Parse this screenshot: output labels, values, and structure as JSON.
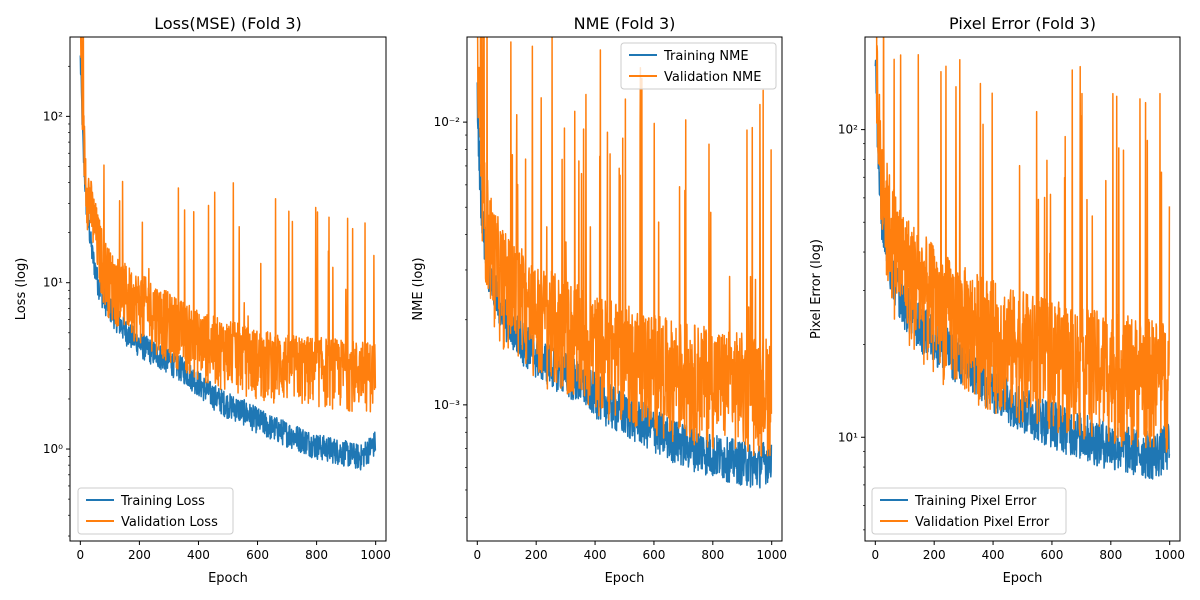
{
  "colors": {
    "training": "#1f77b4",
    "validation": "#ff7f0e"
  },
  "chart_data": [
    {
      "type": "line",
      "title": "Loss(MSE) (Fold 3)",
      "xlabel": "Epoch",
      "ylabel": "Loss (log)",
      "yscale": "log",
      "xlim": [
        -35,
        1035
      ],
      "ylim": [
        0.28,
        300
      ],
      "xticks": [
        0,
        200,
        400,
        600,
        800,
        1000
      ],
      "xtick_labels": [
        "0",
        "200",
        "400",
        "600",
        "800",
        "1000"
      ],
      "yticks": [
        1,
        10,
        100
      ],
      "ytick_labels": [
        "10⁰",
        "10¹",
        "10²"
      ],
      "legend": "lower left",
      "grid": false,
      "series": [
        {
          "name": "Training Loss",
          "color": "#1f77b4",
          "x": [
            0,
            10,
            20,
            40,
            60,
            80,
            100,
            150,
            200,
            250,
            300,
            350,
            400,
            450,
            500,
            550,
            600,
            650,
            700,
            750,
            800,
            850,
            900,
            950,
            1000
          ],
          "y": [
            220,
            60,
            30,
            15,
            10,
            8,
            7,
            5.2,
            4.3,
            3.8,
            3.4,
            3.0,
            2.5,
            2.1,
            1.85,
            1.7,
            1.5,
            1.35,
            1.25,
            1.15,
            1.05,
            1.0,
            0.95,
            0.9,
            1.1
          ]
        },
        {
          "name": "Validation Loss",
          "color": "#ff7f0e",
          "x": [
            0,
            10,
            20,
            40,
            60,
            80,
            100,
            150,
            200,
            250,
            300,
            350,
            400,
            450,
            500,
            550,
            600,
            650,
            700,
            750,
            800,
            850,
            900,
            950,
            1000
          ],
          "y": [
            300,
            70,
            35,
            22,
            15,
            11,
            9,
            7.5,
            6.5,
            5.8,
            5.0,
            4.4,
            3.9,
            3.6,
            3.4,
            3.2,
            3.0,
            2.9,
            2.8,
            2.75,
            2.7,
            2.65,
            2.6,
            2.55,
            2.5
          ]
        }
      ]
    },
    {
      "type": "line",
      "title": "NME (Fold 3)",
      "xlabel": "Epoch",
      "ylabel": "NME (log)",
      "yscale": "log",
      "xlim": [
        -35,
        1035
      ],
      "ylim": [
        0.00033,
        0.02
      ],
      "xticks": [
        0,
        200,
        400,
        600,
        800,
        1000
      ],
      "xtick_labels": [
        "0",
        "200",
        "400",
        "600",
        "800",
        "1000"
      ],
      "yticks": [
        0.001,
        0.01
      ],
      "ytick_labels": [
        "10⁻³",
        "10⁻²"
      ],
      "legend": "upper right",
      "grid": false,
      "series": [
        {
          "name": "Training NME",
          "color": "#1f77b4",
          "x": [
            0,
            10,
            20,
            40,
            60,
            80,
            100,
            150,
            200,
            250,
            300,
            350,
            400,
            450,
            500,
            550,
            600,
            650,
            700,
            750,
            800,
            850,
            900,
            950,
            1000
          ],
          "y": [
            0.012,
            0.006,
            0.0042,
            0.003,
            0.0025,
            0.0022,
            0.002,
            0.0017,
            0.0015,
            0.0014,
            0.0013,
            0.0012,
            0.0011,
            0.001,
            0.00093,
            0.00088,
            0.00082,
            0.00077,
            0.00073,
            0.0007,
            0.00067,
            0.00065,
            0.00063,
            0.00061,
            0.00066
          ]
        },
        {
          "name": "Validation NME",
          "color": "#ff7f0e",
          "x": [
            0,
            10,
            20,
            40,
            60,
            80,
            100,
            150,
            200,
            250,
            300,
            350,
            400,
            450,
            500,
            550,
            600,
            650,
            700,
            750,
            800,
            850,
            900,
            950,
            1000
          ],
          "y": [
            0.015,
            0.0065,
            0.0045,
            0.0034,
            0.0028,
            0.0025,
            0.0023,
            0.002,
            0.0018,
            0.0017,
            0.0016,
            0.0015,
            0.0014,
            0.00135,
            0.0013,
            0.00125,
            0.0012,
            0.00115,
            0.00112,
            0.0011,
            0.00107,
            0.00105,
            0.00103,
            0.001,
            0.001
          ]
        }
      ]
    },
    {
      "type": "line",
      "title": "Pixel Error (Fold 3)",
      "xlabel": "Epoch",
      "ylabel": "Pixel Error (log)",
      "yscale": "log",
      "xlim": [
        -35,
        1035
      ],
      "ylim": [
        4.6,
        200
      ],
      "xticks": [
        0,
        200,
        400,
        600,
        800,
        1000
      ],
      "xtick_labels": [
        "0",
        "200",
        "400",
        "600",
        "800",
        "1000"
      ],
      "yticks": [
        10,
        100
      ],
      "ytick_labels": [
        "10¹",
        "10²"
      ],
      "legend": "lower left",
      "grid": false,
      "series": [
        {
          "name": "Training Pixel Error",
          "color": "#1f77b4",
          "x": [
            0,
            10,
            20,
            40,
            60,
            80,
            100,
            150,
            200,
            250,
            300,
            350,
            400,
            450,
            500,
            550,
            600,
            650,
            700,
            750,
            800,
            850,
            900,
            950,
            1000
          ],
          "y": [
            180,
            85,
            55,
            40,
            33,
            30,
            27,
            23,
            21,
            19,
            17.5,
            16,
            14.5,
            13.5,
            12.5,
            11.8,
            11.2,
            10.7,
            10.2,
            9.8,
            9.5,
            9.2,
            9.0,
            8.8,
            9.5
          ]
        },
        {
          "name": "Validation Pixel Error",
          "color": "#ff7f0e",
          "x": [
            0,
            10,
            20,
            40,
            60,
            80,
            100,
            150,
            200,
            250,
            300,
            350,
            400,
            450,
            500,
            550,
            600,
            650,
            700,
            750,
            800,
            850,
            900,
            950,
            1000
          ],
          "y": [
            200,
            90,
            60,
            45,
            38,
            34,
            31,
            27,
            24,
            22,
            20.5,
            19.5,
            18.5,
            17.5,
            17,
            16.5,
            16,
            15.5,
            15,
            14.8,
            14.5,
            14.2,
            14,
            13.8,
            13.5
          ]
        }
      ]
    }
  ]
}
